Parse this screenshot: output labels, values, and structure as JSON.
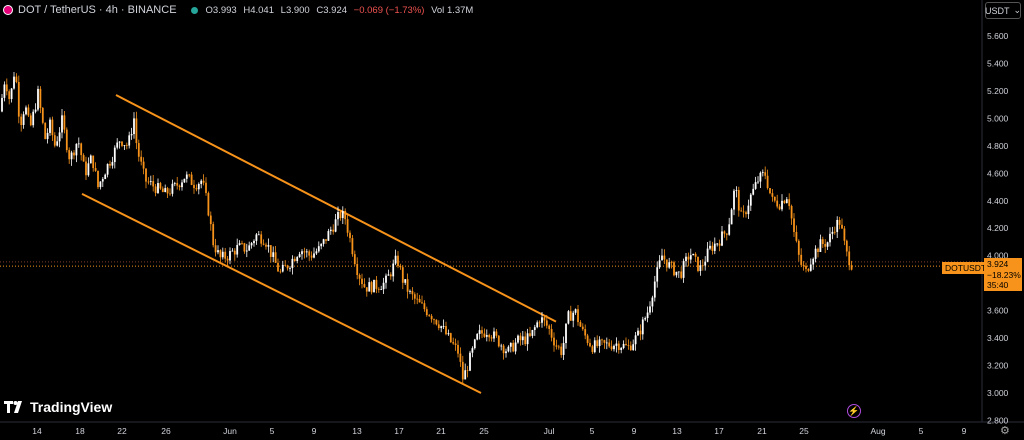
{
  "header": {
    "symbol": "DOT / TetherUS · 4h · BINANCE",
    "ohlc": [
      {
        "k": "O",
        "v": "3.993"
      },
      {
        "k": "H",
        "v": "4.041"
      },
      {
        "k": "L",
        "v": "3.900"
      },
      {
        "k": "C",
        "v": "3.924"
      }
    ],
    "change": "−0.069 (−1.73%)",
    "vol_label": "Vol",
    "vol_value": "1.37M"
  },
  "currency_button": {
    "label": "USDT"
  },
  "brand": {
    "name": "TradingView"
  },
  "price_tag": {
    "price": "3.924",
    "change": "−18.23%",
    "countdown": "35:40",
    "symbol": "DOTUSDT",
    "hidden_level": "3.955"
  },
  "colors": {
    "up": "#ffffff",
    "down": "#f7931a",
    "channel": "#f7931a",
    "bg": "#000000",
    "axis_text": "#d1d4dc"
  },
  "icons": {
    "logo": "dot-coin-icon",
    "bolt": "lightning-icon",
    "gear": "settings-icon"
  },
  "chart_data": {
    "type": "candlestick",
    "symbol": "DOTUSDT",
    "interval": "4h",
    "y_axis": {
      "ticks": [
        "5.600",
        "5.400",
        "5.200",
        "5.000",
        "4.800",
        "4.600",
        "4.400",
        "4.200",
        "4.000",
        "3.800",
        "3.600",
        "3.400",
        "3.200",
        "3.000",
        "2.800"
      ],
      "range": [
        2.8,
        5.7
      ]
    },
    "x_axis": {
      "ticks": [
        "14",
        "18",
        "22",
        "26",
        "Jun",
        "5",
        "9",
        "13",
        "17",
        "21",
        "25",
        "Jul",
        "5",
        "9",
        "13",
        "17",
        "21",
        "25",
        "Aug",
        "5",
        "9"
      ]
    },
    "grid": false,
    "close_path": [
      {
        "t": 0,
        "p": 5.05
      },
      {
        "t": 5,
        "p": 5.3
      },
      {
        "t": 10,
        "p": 5.12
      },
      {
        "t": 15,
        "p": 5.38
      },
      {
        "t": 20,
        "p": 4.95
      },
      {
        "t": 25,
        "p": 5.1
      },
      {
        "t": 30,
        "p": 4.92
      },
      {
        "t": 38,
        "p": 5.18
      },
      {
        "t": 45,
        "p": 4.85
      },
      {
        "t": 50,
        "p": 4.95
      },
      {
        "t": 55,
        "p": 4.8
      },
      {
        "t": 62,
        "p": 4.98
      },
      {
        "t": 70,
        "p": 4.7
      },
      {
        "t": 78,
        "p": 4.85
      },
      {
        "t": 85,
        "p": 4.6
      },
      {
        "t": 92,
        "p": 4.72
      },
      {
        "t": 98,
        "p": 4.5
      },
      {
        "t": 105,
        "p": 4.62
      },
      {
        "t": 112,
        "p": 4.72
      },
      {
        "t": 120,
        "p": 4.85
      },
      {
        "t": 128,
        "p": 4.8
      },
      {
        "t": 134,
        "p": 5.0
      },
      {
        "t": 137,
        "p": 4.78
      },
      {
        "t": 145,
        "p": 4.55
      },
      {
        "t": 155,
        "p": 4.5
      },
      {
        "t": 165,
        "p": 4.45
      },
      {
        "t": 175,
        "p": 4.5
      },
      {
        "t": 185,
        "p": 4.58
      },
      {
        "t": 195,
        "p": 4.52
      },
      {
        "t": 202,
        "p": 4.55
      },
      {
        "t": 208,
        "p": 4.35
      },
      {
        "t": 213,
        "p": 4.1
      },
      {
        "t": 220,
        "p": 3.98
      },
      {
        "t": 228,
        "p": 4.0
      },
      {
        "t": 238,
        "p": 4.06
      },
      {
        "t": 248,
        "p": 4.05
      },
      {
        "t": 256,
        "p": 4.15
      },
      {
        "t": 265,
        "p": 4.12
      },
      {
        "t": 272,
        "p": 4.0
      },
      {
        "t": 280,
        "p": 3.87
      },
      {
        "t": 290,
        "p": 3.95
      },
      {
        "t": 300,
        "p": 4.05
      },
      {
        "t": 310,
        "p": 4.0
      },
      {
        "t": 320,
        "p": 4.05
      },
      {
        "t": 330,
        "p": 4.18
      },
      {
        "t": 340,
        "p": 4.3
      },
      {
        "t": 345,
        "p": 4.28
      },
      {
        "t": 350,
        "p": 4.12
      },
      {
        "t": 358,
        "p": 3.88
      },
      {
        "t": 365,
        "p": 3.77
      },
      {
        "t": 375,
        "p": 3.78
      },
      {
        "t": 385,
        "p": 3.8
      },
      {
        "t": 392,
        "p": 3.9
      },
      {
        "t": 397,
        "p": 3.98
      },
      {
        "t": 403,
        "p": 3.82
      },
      {
        "t": 410,
        "p": 3.72
      },
      {
        "t": 420,
        "p": 3.64
      },
      {
        "t": 430,
        "p": 3.58
      },
      {
        "t": 440,
        "p": 3.5
      },
      {
        "t": 450,
        "p": 3.38
      },
      {
        "t": 458,
        "p": 3.3
      },
      {
        "t": 463,
        "p": 3.1
      },
      {
        "t": 470,
        "p": 3.25
      },
      {
        "t": 478,
        "p": 3.42
      },
      {
        "t": 488,
        "p": 3.46
      },
      {
        "t": 498,
        "p": 3.38
      },
      {
        "t": 508,
        "p": 3.3
      },
      {
        "t": 518,
        "p": 3.38
      },
      {
        "t": 530,
        "p": 3.4
      },
      {
        "t": 540,
        "p": 3.55
      },
      {
        "t": 548,
        "p": 3.48
      },
      {
        "t": 556,
        "p": 3.35
      },
      {
        "t": 562,
        "p": 3.3
      },
      {
        "t": 568,
        "p": 3.55
      },
      {
        "t": 575,
        "p": 3.6
      },
      {
        "t": 582,
        "p": 3.45
      },
      {
        "t": 592,
        "p": 3.34
      },
      {
        "t": 605,
        "p": 3.35
      },
      {
        "t": 618,
        "p": 3.36
      },
      {
        "t": 628,
        "p": 3.33
      },
      {
        "t": 638,
        "p": 3.42
      },
      {
        "t": 648,
        "p": 3.6
      },
      {
        "t": 655,
        "p": 3.82
      },
      {
        "t": 662,
        "p": 4.0
      },
      {
        "t": 670,
        "p": 3.92
      },
      {
        "t": 680,
        "p": 3.86
      },
      {
        "t": 690,
        "p": 4.02
      },
      {
        "t": 700,
        "p": 3.9
      },
      {
        "t": 710,
        "p": 4.05
      },
      {
        "t": 720,
        "p": 4.12
      },
      {
        "t": 728,
        "p": 4.2
      },
      {
        "t": 735,
        "p": 4.5
      },
      {
        "t": 742,
        "p": 4.25
      },
      {
        "t": 750,
        "p": 4.42
      },
      {
        "t": 758,
        "p": 4.55
      },
      {
        "t": 765,
        "p": 4.6
      },
      {
        "t": 772,
        "p": 4.4
      },
      {
        "t": 780,
        "p": 4.38
      },
      {
        "t": 788,
        "p": 4.45
      },
      {
        "t": 793,
        "p": 4.2
      },
      {
        "t": 800,
        "p": 3.95
      },
      {
        "t": 806,
        "p": 3.88
      },
      {
        "t": 812,
        "p": 4.0
      },
      {
        "t": 820,
        "p": 4.08
      },
      {
        "t": 828,
        "p": 4.1
      },
      {
        "t": 835,
        "p": 4.22
      },
      {
        "t": 840,
        "p": 4.25
      },
      {
        "t": 846,
        "p": 4.02
      },
      {
        "t": 853,
        "p": 3.92
      }
    ],
    "channel": {
      "upper": [
        {
          "date": "22",
          "price": 5.17
        },
        {
          "date": "29",
          "price": 3.52
        }
      ],
      "lower": [
        {
          "date": "18",
          "price": 4.45
        },
        {
          "date": "25",
          "price": 3.0
        }
      ]
    },
    "last_price": 3.924,
    "last_change_pct": -18.23
  }
}
